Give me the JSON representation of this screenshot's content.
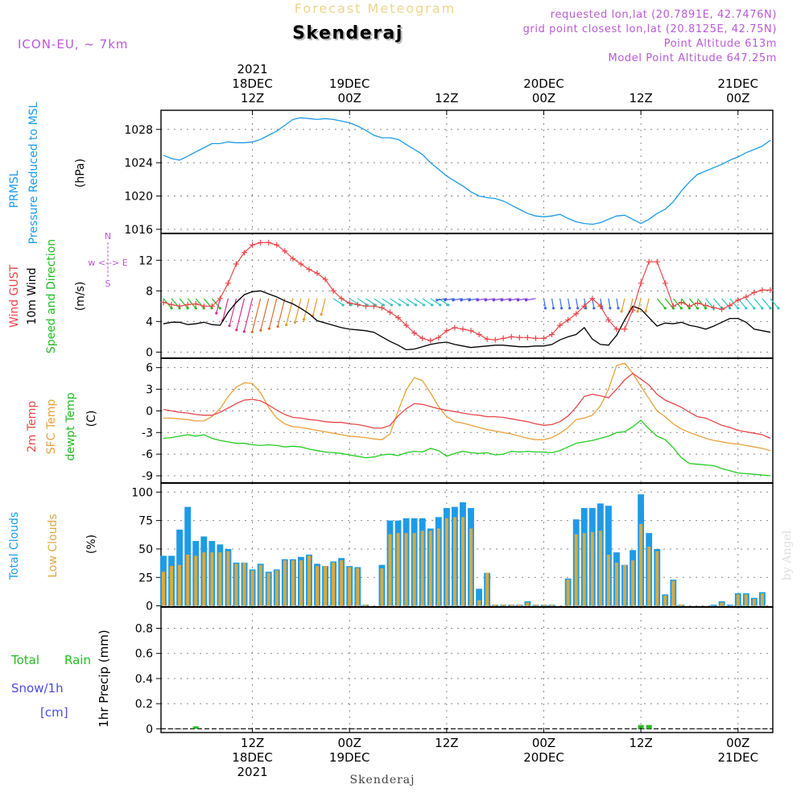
{
  "header": {
    "top_title": "Forecast Meteogram",
    "location": "Skenderaj",
    "model": "ICON-EU, ~ 7km",
    "requested": "requested lon,lat (20.7891E, 42.7476N)",
    "grid_point": "grid point closest lon,lat (20.8125E, 42.75N)",
    "point_alt": "Point Altitude 613m",
    "model_alt": "Model Point Altitude 647.25m",
    "footer_location": "Skenderaj",
    "watermark": "by Angel"
  },
  "colors": {
    "pressure": "#1e9be6",
    "gust": "#e8474a",
    "wind10m": "#000000",
    "temp2m": "#e8474a",
    "sfc": "#e8a23a",
    "dewpt": "#22cc22",
    "total_cloud": "#1e9be6",
    "low_cloud": "#d9a93c",
    "rain": "#22bb22",
    "snow": "#4b4bdd",
    "purple_text": "#b85ad6",
    "green_label": "#22bb22"
  },
  "time_axis": {
    "top_ticks": [
      {
        "x_hours": 12,
        "lines": [
          "2021",
          "18DEC",
          "12Z"
        ]
      },
      {
        "x_hours": 24,
        "lines": [
          "19DEC",
          "00Z"
        ]
      },
      {
        "x_hours": 36,
        "lines": [
          "12Z"
        ]
      },
      {
        "x_hours": 48,
        "lines": [
          "20DEC",
          "00Z"
        ]
      },
      {
        "x_hours": 60,
        "lines": [
          "12Z"
        ]
      },
      {
        "x_hours": 72,
        "lines": [
          "21DEC",
          "00Z"
        ]
      }
    ],
    "bottom_ticks": [
      {
        "x_hours": 12,
        "lines": [
          "12Z",
          "18DEC",
          "2021"
        ]
      },
      {
        "x_hours": 24,
        "lines": [
          "00Z",
          "19DEC"
        ]
      },
      {
        "x_hours": 36,
        "lines": [
          "12Z"
        ]
      },
      {
        "x_hours": 48,
        "lines": [
          "00Z",
          "20DEC"
        ]
      },
      {
        "x_hours": 60,
        "lines": [
          "12Z"
        ]
      },
      {
        "x_hours": 72,
        "lines": [
          "00Z",
          "21DEC"
        ]
      }
    ],
    "xlim": [
      1,
      76
    ]
  },
  "panels_labels": {
    "pressure": {
      "line1": "PRMSL",
      "line2": "Pressure Reduced to MSL",
      "unit": "(hPa)"
    },
    "wind": {
      "gust": "Wind GUST",
      "w10": "10m Wind",
      "sd": "Speed and Direction",
      "unit": "(m/s)",
      "compass": "w <--> E",
      "compass_n": "N",
      "compass_s": "S"
    },
    "temp": {
      "t2m": "2m Temp",
      "sfc": "SFC Temp",
      "dew": "dewpt Temp",
      "unit": "(C)"
    },
    "cloud": {
      "total": "Total Clouds",
      "low": "Low Clouds",
      "unit": "(%)"
    },
    "precip": {
      "total": "Total",
      "rain": "Rain",
      "snow": "Snow/1h",
      "cm": "[cm]",
      "unit": "1hr Precip (mm)"
    }
  },
  "chart_data": [
    {
      "type": "line",
      "name": "pressure",
      "ylim": [
        1015.5,
        1030.3
      ],
      "yticks": [
        1016,
        1020,
        1024,
        1028
      ],
      "x": [
        1,
        2,
        3,
        4,
        5,
        6,
        7,
        8,
        9,
        10,
        11,
        12,
        13,
        14,
        15,
        16,
        17,
        18,
        19,
        20,
        21,
        22,
        23,
        24,
        25,
        26,
        27,
        28,
        29,
        30,
        31,
        32,
        33,
        34,
        35,
        36,
        37,
        38,
        39,
        40,
        41,
        42,
        43,
        44,
        45,
        46,
        47,
        48,
        49,
        50,
        51,
        52,
        53,
        54,
        55,
        56,
        57,
        58,
        59,
        60,
        61,
        62,
        63,
        64,
        65,
        66,
        67,
        68,
        69,
        70,
        71,
        72,
        73,
        74,
        75,
        76
      ],
      "series": [
        {
          "values": [
            1024.9,
            1024.5,
            1024.3,
            1024.8,
            1025.3,
            1025.8,
            1026.3,
            1026.3,
            1026.5,
            1026.4,
            1026.4,
            1026.5,
            1026.8,
            1027.3,
            1027.8,
            1028.5,
            1029.2,
            1029.4,
            1029.3,
            1029.2,
            1029.3,
            1029.2,
            1029.0,
            1028.8,
            1028.4,
            1027.9,
            1027.3,
            1027.0,
            1027.0,
            1026.8,
            1026.2,
            1025.6,
            1025.0,
            1024.0,
            1023.2,
            1022.4,
            1021.8,
            1021.2,
            1020.5,
            1020.0,
            1019.8,
            1019.7,
            1019.4,
            1018.9,
            1018.4,
            1017.9,
            1017.6,
            1017.5,
            1017.6,
            1017.8,
            1017.3,
            1016.9,
            1016.7,
            1016.6,
            1016.8,
            1017.2,
            1017.6,
            1017.7,
            1017.2,
            1016.7,
            1017.2,
            1017.9,
            1018.4,
            1019.3,
            1020.6,
            1021.7,
            1022.6,
            1023.0,
            1023.4,
            1023.8,
            1024.3,
            1024.7,
            1025.2,
            1025.6,
            1026.0,
            1026.7
          ]
        }
      ]
    },
    {
      "type": "line",
      "name": "wind",
      "ylim": [
        -0.8,
        15.5
      ],
      "yticks": [
        0,
        4,
        8,
        12
      ],
      "x": [
        1,
        2,
        3,
        4,
        5,
        6,
        7,
        8,
        9,
        10,
        11,
        12,
        13,
        14,
        15,
        16,
        17,
        18,
        19,
        20,
        21,
        22,
        23,
        24,
        25,
        26,
        27,
        28,
        29,
        30,
        31,
        32,
        33,
        34,
        35,
        36,
        37,
        38,
        39,
        40,
        41,
        42,
        43,
        44,
        45,
        46,
        47,
        48,
        49,
        50,
        51,
        52,
        53,
        54,
        55,
        56,
        57,
        58,
        59,
        60,
        61,
        62,
        63,
        64,
        65,
        66,
        67,
        68,
        69,
        70,
        71,
        72,
        73,
        74,
        75,
        76
      ],
      "series": [
        {
          "name": "Wind GUST",
          "values": [
            6.5,
            6.2,
            6.0,
            6.2,
            6.3,
            6.0,
            6.0,
            7.0,
            9.0,
            11.5,
            13.0,
            14.0,
            14.3,
            14.3,
            14.0,
            13.2,
            12.2,
            11.5,
            10.8,
            10.3,
            9.5,
            8.0,
            7.0,
            6.4,
            6.2,
            6.0,
            6.0,
            5.8,
            5.2,
            4.5,
            3.5,
            2.5,
            1.8,
            1.5,
            1.9,
            2.8,
            3.2,
            3.0,
            2.8,
            2.3,
            1.7,
            1.6,
            1.8,
            2.0,
            1.9,
            1.9,
            1.8,
            1.8,
            2.3,
            3.5,
            4.2,
            5.0,
            6.0,
            7.0,
            6.0,
            4.2,
            3.0,
            3.0,
            5.5,
            9.0,
            11.8,
            11.8,
            9.0,
            6.0,
            6.5,
            6.0,
            6.4,
            6.1,
            5.8,
            5.6,
            6.1,
            6.8,
            7.2,
            7.8,
            8.1,
            8.1
          ]
        },
        {
          "name": "10m Wind",
          "values": [
            3.7,
            3.9,
            3.9,
            3.6,
            3.7,
            3.9,
            3.6,
            3.5,
            5.2,
            6.5,
            7.5,
            7.9,
            8.0,
            7.6,
            7.2,
            6.7,
            6.3,
            5.7,
            5.0,
            4.1,
            3.8,
            3.5,
            3.2,
            3.0,
            2.9,
            2.8,
            2.6,
            2.0,
            1.4,
            0.9,
            0.3,
            0.4,
            0.7,
            1.0,
            1.2,
            1.3,
            1.0,
            0.8,
            0.6,
            0.7,
            0.8,
            0.9,
            0.9,
            0.8,
            0.7,
            0.7,
            0.8,
            0.8,
            1.0,
            1.6,
            2.0,
            2.3,
            3.2,
            1.7,
            1.0,
            0.9,
            2.2,
            4.2,
            6.0,
            5.6,
            4.5,
            3.4,
            3.8,
            3.7,
            3.9,
            3.5,
            3.3,
            3.0,
            3.4,
            3.9,
            4.4,
            4.4,
            3.9,
            3.0,
            2.8,
            2.6
          ]
        }
      ]
    },
    {
      "type": "line",
      "name": "temperature",
      "ylim": [
        -10.0,
        7.3
      ],
      "yticks": [
        -9,
        -6,
        -3,
        0,
        3,
        6
      ],
      "x": [
        1,
        2,
        3,
        4,
        5,
        6,
        7,
        8,
        9,
        10,
        11,
        12,
        13,
        14,
        15,
        16,
        17,
        18,
        19,
        20,
        21,
        22,
        23,
        24,
        25,
        26,
        27,
        28,
        29,
        30,
        31,
        32,
        33,
        34,
        35,
        36,
        37,
        38,
        39,
        40,
        41,
        42,
        43,
        44,
        45,
        46,
        47,
        48,
        49,
        50,
        51,
        52,
        53,
        54,
        55,
        56,
        57,
        58,
        59,
        60,
        61,
        62,
        63,
        64,
        65,
        66,
        67,
        68,
        69,
        70,
        71,
        72,
        73,
        74,
        75,
        76
      ],
      "series": [
        {
          "name": "2m Temp",
          "values": [
            0.2,
            0.0,
            -0.2,
            -0.3,
            -0.5,
            -0.6,
            -0.6,
            -0.2,
            0.4,
            1.0,
            1.5,
            1.6,
            1.4,
            0.8,
            0.1,
            -0.5,
            -0.9,
            -1.0,
            -1.2,
            -1.3,
            -1.5,
            -1.6,
            -1.6,
            -1.8,
            -1.9,
            -2.1,
            -2.4,
            -2.4,
            -2.0,
            -0.7,
            0.3,
            1.0,
            0.9,
            0.6,
            0.3,
            0.1,
            -0.1,
            -0.3,
            -0.5,
            -0.6,
            -0.8,
            -0.8,
            -0.9,
            -1.1,
            -1.3,
            -1.5,
            -1.8,
            -2.0,
            -1.9,
            -1.5,
            -0.7,
            0.5,
            2.0,
            2.3,
            2.1,
            1.8,
            3.0,
            4.3,
            5.2,
            4.4,
            3.6,
            2.3,
            1.5,
            1.0,
            0.5,
            -0.2,
            -0.8,
            -1.0,
            -1.5,
            -2.0,
            -2.3,
            -2.7,
            -2.9,
            -3.1,
            -3.3,
            -3.8
          ]
        },
        {
          "name": "SFC Temp",
          "values": [
            -1.0,
            -1.0,
            -1.1,
            -1.2,
            -1.4,
            -1.4,
            -0.8,
            0.3,
            2.0,
            3.3,
            3.9,
            3.8,
            2.5,
            0.5,
            -1.0,
            -1.8,
            -2.2,
            -2.3,
            -2.5,
            -2.7,
            -2.9,
            -3.1,
            -3.3,
            -3.5,
            -3.6,
            -3.7,
            -3.9,
            -4.0,
            -3.2,
            0.0,
            2.9,
            4.6,
            4.2,
            2.5,
            0.6,
            -0.8,
            -1.5,
            -1.7,
            -2.0,
            -2.3,
            -2.6,
            -2.8,
            -3.0,
            -3.2,
            -3.5,
            -3.8,
            -4.0,
            -4.0,
            -3.7,
            -3.1,
            -2.3,
            -1.2,
            -1.0,
            -0.6,
            0.7,
            3.0,
            6.3,
            6.6,
            5.2,
            3.4,
            1.7,
            0.0,
            -0.8,
            -1.8,
            -2.5,
            -3.0,
            -3.4,
            -3.8,
            -4.1,
            -4.3,
            -4.5,
            -4.6,
            -4.8,
            -5.0,
            -5.2,
            -5.5
          ]
        },
        {
          "name": "dewpt Temp",
          "values": [
            -3.8,
            -3.7,
            -3.5,
            -3.3,
            -3.5,
            -3.3,
            -3.8,
            -4.1,
            -4.3,
            -4.5,
            -4.5,
            -4.7,
            -4.8,
            -4.7,
            -4.8,
            -5.0,
            -4.9,
            -5.0,
            -5.3,
            -5.5,
            -5.7,
            -5.8,
            -5.9,
            -6.1,
            -6.3,
            -6.5,
            -6.4,
            -6.1,
            -6.0,
            -6.2,
            -5.8,
            -5.6,
            -5.7,
            -5.2,
            -5.5,
            -6.3,
            -5.9,
            -5.6,
            -5.8,
            -5.9,
            -5.8,
            -6.1,
            -6.0,
            -5.6,
            -5.7,
            -5.6,
            -5.7,
            -5.7,
            -5.8,
            -5.5,
            -5.0,
            -4.5,
            -4.3,
            -4.1,
            -3.8,
            -3.5,
            -3.0,
            -2.9,
            -2.2,
            -1.3,
            -2.5,
            -3.5,
            -4.0,
            -5.1,
            -6.5,
            -7.3,
            -7.4,
            -7.5,
            -7.6,
            -8.0,
            -8.3,
            -8.6,
            -8.7,
            -8.8,
            -8.9,
            -9.0
          ]
        }
      ]
    },
    {
      "type": "bar",
      "name": "clouds",
      "ylim": [
        -1,
        108
      ],
      "yticks": [
        0,
        25,
        50,
        75,
        100
      ],
      "x": [
        1,
        2,
        3,
        4,
        5,
        6,
        7,
        8,
        9,
        10,
        11,
        12,
        13,
        14,
        15,
        16,
        17,
        18,
        19,
        20,
        21,
        22,
        23,
        24,
        25,
        26,
        27,
        28,
        29,
        30,
        31,
        32,
        33,
        34,
        35,
        36,
        37,
        38,
        39,
        40,
        41,
        42,
        43,
        44,
        45,
        46,
        47,
        48,
        49,
        50,
        51,
        52,
        53,
        54,
        55,
        56,
        57,
        58,
        59,
        60,
        61,
        62,
        63,
        64,
        65,
        66,
        67,
        68,
        69,
        70,
        71,
        72,
        73,
        74,
        75,
        76
      ],
      "series": [
        {
          "name": "Total Clouds",
          "values": [
            44,
            44,
            67,
            87,
            57,
            61,
            57,
            54,
            50,
            38,
            38,
            32,
            37,
            30,
            32,
            41,
            41,
            43,
            45,
            37,
            35,
            39,
            42,
            35,
            34,
            1,
            0,
            36,
            75,
            75,
            77,
            77,
            77,
            68,
            78,
            86,
            87,
            91,
            86,
            15,
            29,
            1,
            1,
            1,
            1,
            4,
            1,
            1,
            1,
            0,
            24,
            76,
            86,
            86,
            90,
            88,
            47,
            36,
            49,
            98,
            64,
            50,
            10,
            23,
            1,
            0,
            0,
            0,
            1,
            4,
            1,
            11,
            11,
            7,
            12,
            0
          ]
        },
        {
          "name": "Low Clouds",
          "values": [
            30,
            35,
            36,
            45,
            44,
            47,
            47,
            47,
            48,
            37,
            38,
            31,
            36,
            29,
            31,
            40,
            40,
            40,
            44,
            35,
            35,
            38,
            40,
            34,
            33,
            1,
            0,
            33,
            63,
            64,
            64,
            64,
            66,
            66,
            68,
            77,
            78,
            78,
            68,
            5,
            29,
            1,
            1,
            1,
            1,
            3,
            1,
            1,
            1,
            0,
            23,
            63,
            64,
            65,
            66,
            45,
            38,
            36,
            40,
            72,
            52,
            48,
            9,
            22,
            1,
            0,
            0,
            0,
            0,
            3,
            0,
            10,
            10,
            6,
            11,
            0
          ]
        }
      ]
    },
    {
      "type": "bar",
      "name": "precip",
      "ylim": [
        -0.03,
        0.97
      ],
      "yticks": [
        0,
        0.2,
        0.4,
        0.6,
        0.8
      ],
      "series": [
        {
          "name": "Total Rain",
          "points": [
            [
              5,
              0.004
            ],
            [
              60,
              0.03
            ],
            [
              61,
              0.03
            ]
          ]
        }
      ]
    }
  ]
}
